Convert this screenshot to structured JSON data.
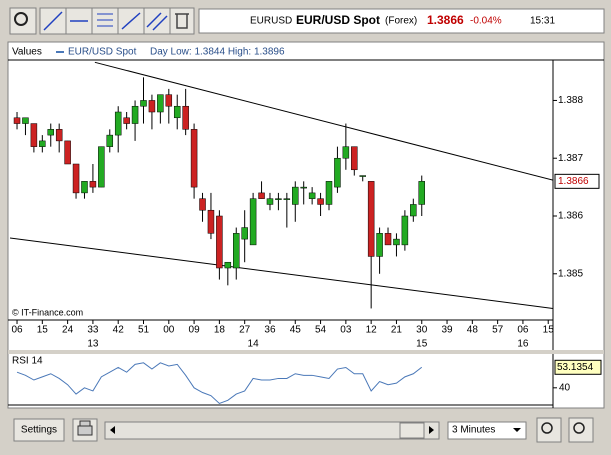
{
  "header": {
    "symbol": "EURUSD",
    "name": "EUR/USD Spot",
    "market": "(Forex)",
    "price": "1.3866",
    "change": "-0.04%",
    "time": "15:31"
  },
  "toolbar": {
    "settings": "Settings",
    "interval": "3 Minutes"
  },
  "chart_data": [
    {
      "type": "candlestick",
      "legend_title": "Values",
      "series_name": "EUR/USD Spot",
      "subtitle": "Day Low: 1.3844 High: 1.3896",
      "annotation": "© IT-Finance.com",
      "up_color": "#22aa22",
      "down_color": "#cc2222",
      "legend_color": "#4a78b8",
      "x": [
        0,
        3,
        6,
        9,
        12,
        15,
        18,
        21,
        24,
        27,
        30,
        33,
        36,
        39,
        42,
        45,
        48,
        51,
        54,
        57,
        60,
        63,
        66,
        69,
        72,
        75,
        78,
        81,
        84,
        87,
        90,
        93,
        96,
        99,
        102,
        105,
        108,
        111,
        114,
        117,
        120,
        123,
        126,
        129,
        132,
        135,
        138,
        141,
        144
      ],
      "open": [
        1.3877,
        1.3876,
        1.3876,
        1.3872,
        1.3874,
        1.3875,
        1.3873,
        1.3869,
        1.3864,
        1.3866,
        1.3865,
        1.3872,
        1.3874,
        1.3877,
        1.3876,
        1.3879,
        1.388,
        1.3878,
        1.3881,
        1.3877,
        1.3879,
        1.3875,
        1.3863,
        1.3861,
        1.386,
        1.3851,
        1.3851,
        1.3856,
        1.3855,
        1.3864,
        1.3862,
        1.3863,
        1.3863,
        1.3862,
        1.3865,
        1.3863,
        1.3863,
        1.3862,
        1.3865,
        1.387,
        1.3872,
        1.3867,
        1.3866,
        1.3853,
        1.3857,
        1.3855,
        1.3855,
        1.386,
        1.3862
      ],
      "high": [
        1.3878,
        1.3877,
        1.3876,
        1.3874,
        1.3876,
        1.3876,
        1.3873,
        1.3869,
        1.3866,
        1.3869,
        1.3872,
        1.3875,
        1.3879,
        1.3878,
        1.388,
        1.3884,
        1.3881,
        1.3881,
        1.3882,
        1.3881,
        1.3882,
        1.3876,
        1.3864,
        1.3864,
        1.3861,
        1.3852,
        1.3858,
        1.3861,
        1.3864,
        1.3866,
        1.3864,
        1.3864,
        1.3864,
        1.3866,
        1.3866,
        1.3865,
        1.3864,
        1.3866,
        1.3872,
        1.3876,
        1.3872,
        1.3867,
        1.3866,
        1.3858,
        1.3858,
        1.3857,
        1.3861,
        1.3863,
        1.3867
      ],
      "low": [
        1.3875,
        1.3874,
        1.3871,
        1.3871,
        1.3872,
        1.3871,
        1.3869,
        1.3863,
        1.3863,
        1.3864,
        1.3865,
        1.3871,
        1.3871,
        1.3875,
        1.3873,
        1.3876,
        1.3875,
        1.3876,
        1.3876,
        1.3875,
        1.3874,
        1.3863,
        1.3859,
        1.3856,
        1.3849,
        1.3848,
        1.3849,
        1.3852,
        1.3855,
        1.3863,
        1.3861,
        1.3861,
        1.3858,
        1.3859,
        1.3862,
        1.3862,
        1.386,
        1.3861,
        1.3864,
        1.3868,
        1.3867,
        1.3866,
        1.3844,
        1.385,
        1.3855,
        1.3853,
        1.3854,
        1.3859,
        1.386
      ],
      "close": [
        1.3876,
        1.3877,
        1.3872,
        1.3873,
        1.3875,
        1.3873,
        1.3869,
        1.3864,
        1.3866,
        1.3865,
        1.3872,
        1.3874,
        1.3878,
        1.3876,
        1.3879,
        1.388,
        1.3878,
        1.3881,
        1.3879,
        1.3879,
        1.3875,
        1.3865,
        1.3861,
        1.3857,
        1.3851,
        1.3852,
        1.3857,
        1.3858,
        1.3863,
        1.3863,
        1.3863,
        1.3863,
        1.3863,
        1.3865,
        1.3865,
        1.3864,
        1.3862,
        1.3866,
        1.387,
        1.3872,
        1.3868,
        1.3867,
        1.3853,
        1.3857,
        1.3855,
        1.3856,
        1.386,
        1.3862,
        1.3866
      ],
      "last_value": 1.3866,
      "trend_lines": [
        {
          "x": [
            27.7,
            190.7
          ],
          "y": [
            1.38866,
            1.38662
          ]
        },
        {
          "x": [
            -2.5,
            190.7
          ],
          "y": [
            1.38562,
            1.3844
          ]
        }
      ],
      "xlim": [
        -2.5,
        190.7
      ],
      "ylim": [
        1.3842,
        1.3887
      ],
      "yticks": [
        1.385,
        1.386,
        1.387,
        1.388
      ],
      "xticks": [
        {
          "value": 0,
          "label": "06"
        },
        {
          "value": 9,
          "label": "15"
        },
        {
          "value": 18,
          "label": "24"
        },
        {
          "value": 27,
          "label": "33"
        },
        {
          "value": 36,
          "label": "42"
        },
        {
          "value": 45,
          "label": "51"
        },
        {
          "value": 54,
          "label": "00"
        },
        {
          "value": 63,
          "label": "09"
        },
        {
          "value": 72,
          "label": "18"
        },
        {
          "value": 81,
          "label": "27"
        },
        {
          "value": 90,
          "label": "36"
        },
        {
          "value": 99,
          "label": "45"
        },
        {
          "value": 108,
          "label": "54"
        },
        {
          "value": 117,
          "label": "03"
        },
        {
          "value": 126,
          "label": "12"
        },
        {
          "value": 135,
          "label": "21"
        },
        {
          "value": 144,
          "label": "30"
        },
        {
          "value": 153,
          "label": "39"
        },
        {
          "value": 162,
          "label": "48"
        },
        {
          "value": 171,
          "label": "57"
        },
        {
          "value": 180,
          "label": "06"
        },
        {
          "value": 189,
          "label": "15"
        }
      ],
      "day_ticks": [
        {
          "value": 27,
          "label": "13"
        },
        {
          "value": 84,
          "label": "14"
        },
        {
          "value": 144,
          "label": "15"
        },
        {
          "value": 180,
          "label": "16"
        }
      ]
    },
    {
      "type": "line",
      "title": "RSI 14",
      "color": "#4a78b8",
      "x": [
        0,
        3,
        6,
        9,
        12,
        15,
        18,
        21,
        24,
        27,
        30,
        33,
        36,
        39,
        42,
        45,
        48,
        51,
        54,
        57,
        60,
        63,
        66,
        69,
        72,
        75,
        78,
        81,
        84,
        87,
        90,
        93,
        96,
        99,
        102,
        105,
        108,
        111,
        114,
        117,
        120,
        123,
        126,
        129,
        132,
        135,
        138,
        141,
        144
      ],
      "values": [
        50,
        48,
        45,
        47,
        49,
        46,
        42,
        36,
        40,
        38,
        47,
        50,
        53,
        50,
        55,
        56,
        52,
        56,
        54,
        55,
        48,
        40,
        37,
        35,
        30,
        32,
        36,
        38,
        46,
        45,
        45,
        46,
        46,
        49,
        48,
        48,
        47,
        46,
        52,
        53,
        49,
        49,
        38,
        44,
        42,
        43,
        47,
        49,
        53.1354
      ],
      "xlim": [
        -2.5,
        190.7
      ],
      "ylim": [
        29,
        61
      ],
      "yticks": [
        40
      ]
    }
  ]
}
